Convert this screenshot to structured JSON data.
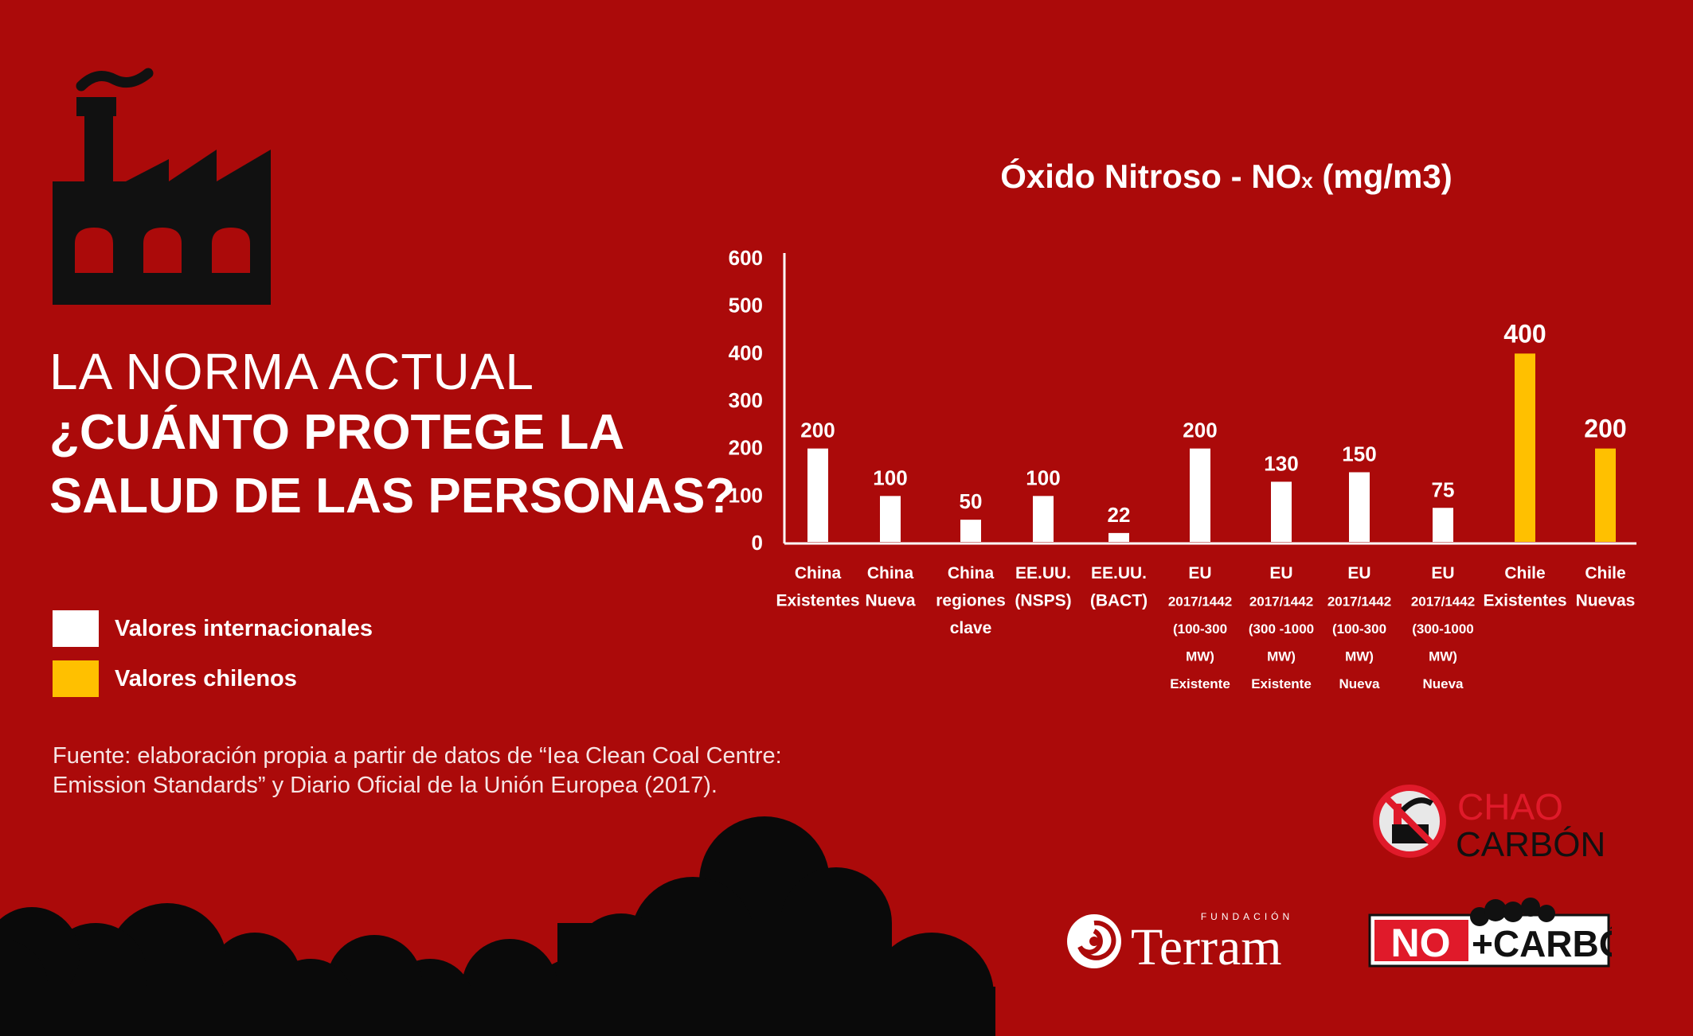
{
  "headline": {
    "line1": "LA NORMA ACTUAL",
    "line2": "¿CUÁNTO PROTEGE LA",
    "line3": "SALUD DE LAS PERSONAS?"
  },
  "legend": [
    {
      "label": "Valores internacionales",
      "color": "#ffffff"
    },
    {
      "label": "Valores chilenos",
      "color": "#ffc000"
    }
  ],
  "source": {
    "line1": "Fuente: elaboración propia a partir de datos de “Iea Clean Coal Centre:",
    "line2": "Emission Standards” y Diario Oficial de la Unión Europea (2017)."
  },
  "logos": {
    "chao": [
      "CHAO",
      "CARBÓN"
    ],
    "terram_small": "FUNDACIÓN",
    "terram": "Terram",
    "nomas": [
      "NO",
      "+CARBÓN"
    ]
  },
  "chart_data": {
    "type": "bar",
    "title": "Óxido Nitroso - NO",
    "title_subscript": "x",
    "title_unit": "(mg/m3)",
    "xlabel": "",
    "ylabel": "",
    "ylim": [
      0,
      600
    ],
    "yticks": [
      0,
      100,
      200,
      300,
      400,
      500,
      600
    ],
    "grid": false,
    "categories": [
      [
        "China",
        "Existentes"
      ],
      [
        "China",
        "Nueva"
      ],
      [
        "China",
        "regiones",
        "clave"
      ],
      [
        "EE.UU.",
        "(NSPS)"
      ],
      [
        "EE.UU.",
        "(BACT)"
      ],
      [
        "EU",
        "2017/1442",
        "(100-300",
        "MW)",
        "Existente"
      ],
      [
        "EU",
        "2017/1442",
        "(300 -1000",
        "MW)",
        "Existente"
      ],
      [
        "EU",
        "2017/1442",
        "(100-300",
        "MW)",
        "Nueva"
      ],
      [
        "EU",
        "2017/1442",
        "(300-1000",
        "MW)",
        "Nueva"
      ],
      [
        "Chile",
        "Existentes"
      ],
      [
        "Chile",
        "Nuevas"
      ]
    ],
    "values": [
      200,
      100,
      50,
      100,
      22,
      200,
      130,
      150,
      75,
      400,
      200
    ],
    "groups": [
      "internacional",
      "internacional",
      "internacional",
      "internacional",
      "internacional",
      "internacional",
      "internacional",
      "internacional",
      "internacional",
      "chileno",
      "chileno"
    ],
    "colors": {
      "internacional": "#ffffff",
      "chileno": "#ffc000"
    }
  }
}
